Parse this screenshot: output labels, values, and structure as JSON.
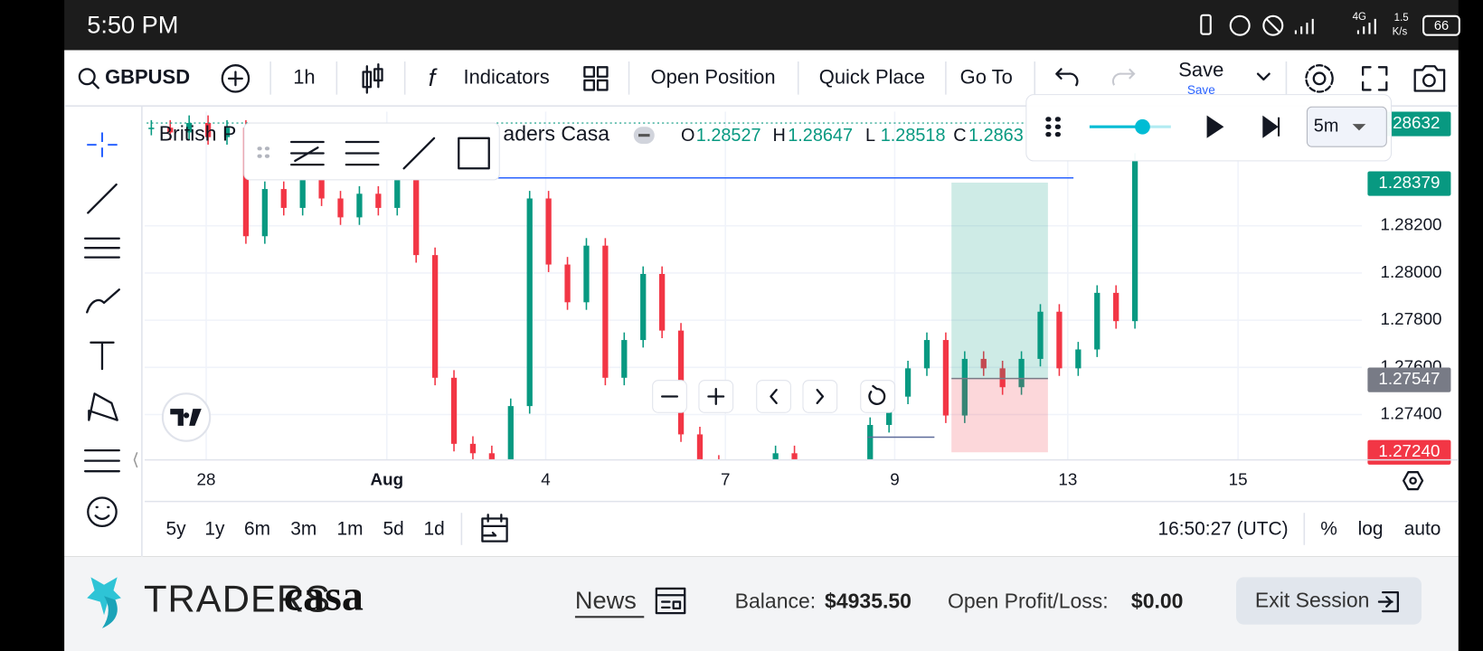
{
  "status_bar": {
    "time": "5:50 PM",
    "network": "4G",
    "speed": "1.5",
    "speed_unit": "K/s",
    "battery": "66"
  },
  "toolbar": {
    "symbol": "GBPUSD",
    "interval": "1h",
    "indicators": "Indicators",
    "open_position": "Open Position",
    "quick_place": "Quick Place",
    "go_to": "Go To",
    "save": "Save",
    "save_sub": "Save"
  },
  "legend": {
    "title_start": "British P",
    "title_end": "aders Casa",
    "ohlc": [
      {
        "key": "O",
        "value": "1.28527"
      },
      {
        "key": "H",
        "value": "1.28647"
      },
      {
        "key": "L",
        "value": "1.28518"
      },
      {
        "key": "C",
        "value": "1.2863"
      }
    ]
  },
  "replay": {
    "interval": "5m"
  },
  "chart": {
    "closes": [
      1.28616,
      1.28596,
      1.28636,
      1.28576,
      1.28616,
      1.28156,
      1.28356,
      1.28276,
      1.28396,
      1.28316,
      1.28236,
      1.28336,
      1.28276,
      1.28476,
      1.28076,
      1.27556,
      1.27276,
      1.27236,
      1.27196,
      1.27436,
      1.28316,
      1.28036,
      1.27876,
      1.28116,
      1.27556,
      1.27716,
      1.27996,
      1.27756,
      1.27316,
      1.27196,
      1.27156,
      1.27116,
      1.27076,
      1.27236,
      1.27156,
      1.27076,
      1.27036,
      1.27116,
      1.27356,
      1.27476,
      1.27596,
      1.27716,
      1.27396,
      1.27636,
      1.27596,
      1.27516,
      1.27636,
      1.27836,
      1.27596,
      1.27676,
      1.27916,
      1.27796,
      1.28476
    ],
    "up_color": "#089981",
    "down_color": "#f23645",
    "ylim": [
      1.27208,
      1.28684
    ],
    "yticks": [
      {
        "value": 1.282,
        "label": "1.28200"
      },
      {
        "value": 1.28,
        "label": "1.28000"
      },
      {
        "value": 1.278,
        "label": "1.27800"
      },
      {
        "value": 1.276,
        "label": "1.27600"
      },
      {
        "value": 1.274,
        "label": "1.27400"
      }
    ],
    "price_badges": [
      {
        "value": 1.28632,
        "label": "1.28632",
        "color": "#089981"
      },
      {
        "value": 1.28379,
        "label": "1.28379",
        "color": "#089981"
      },
      {
        "value": 1.27547,
        "label": "1.27547",
        "color": "#787b86"
      },
      {
        "value": 1.2724,
        "label": "1.27240",
        "color": "#f23645"
      }
    ],
    "x_labels": [
      "28",
      "Aug",
      "4",
      "7",
      "9",
      "13",
      "15"
    ]
  },
  "ranges": [
    "5y",
    "1y",
    "6m",
    "3m",
    "1m",
    "5d",
    "1d"
  ],
  "clock": "16:50:27 (UTC)",
  "scale_options": [
    "%",
    "log",
    "auto"
  ],
  "footer": {
    "brand_left": "TRADERS",
    "brand_right": "casa",
    "news": "News",
    "balance_label": "Balance:",
    "balance": "$4935.50",
    "pl_label": "Open Profit/Loss:",
    "pl": "$0.00",
    "exit": "Exit Session"
  }
}
